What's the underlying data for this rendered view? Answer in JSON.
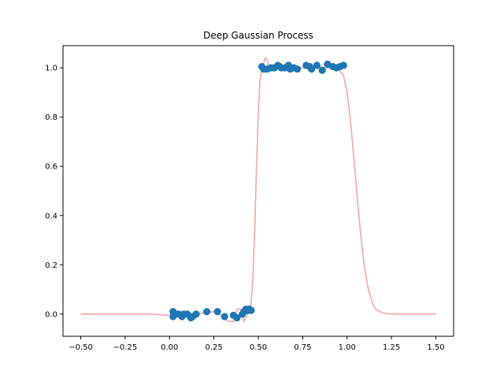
{
  "chart_data": {
    "type": "scatter",
    "title": "Deep Gaussian Process",
    "xlabel": "",
    "ylabel": "",
    "xlim": [
      -0.6,
      1.6
    ],
    "ylim": [
      -0.09,
      1.09
    ],
    "xticks": [
      -0.5,
      -0.25,
      0.0,
      0.25,
      0.5,
      0.75,
      1.0,
      1.25,
      1.5
    ],
    "xtick_labels": [
      "−0.50",
      "−0.25",
      "0.00",
      "0.25",
      "0.50",
      "0.75",
      "1.00",
      "1.25",
      "1.50"
    ],
    "yticks": [
      0.0,
      0.2,
      0.4,
      0.6,
      0.8,
      1.0
    ],
    "ytick_labels": [
      "0.0",
      "0.2",
      "0.4",
      "0.6",
      "0.8",
      "1.0"
    ],
    "grid": false,
    "colors": {
      "points": "#1f77b4",
      "curve": "#f4a6a6"
    },
    "series": [
      {
        "kind": "points",
        "x": [
          0.02,
          0.02,
          0.05,
          0.07,
          0.08,
          0.1,
          0.12,
          0.13,
          0.15,
          0.21,
          0.27,
          0.31,
          0.36,
          0.38,
          0.41,
          0.42,
          0.43,
          0.44,
          0.45,
          0.46,
          0.52,
          0.53,
          0.55,
          0.57,
          0.59,
          0.61,
          0.62,
          0.63,
          0.65,
          0.67,
          0.68,
          0.7,
          0.72,
          0.77,
          0.79,
          0.8,
          0.83,
          0.86,
          0.89,
          0.92,
          0.94,
          0.96,
          0.98
        ],
        "y": [
          0.01,
          -0.01,
          0.0,
          -0.01,
          0.0,
          0.0,
          -0.015,
          -0.01,
          0.0,
          0.01,
          0.01,
          -0.01,
          -0.005,
          -0.015,
          0.0,
          0.01,
          0.02,
          0.015,
          0.02,
          0.015,
          1.005,
          0.995,
          0.995,
          1.0,
          1.0,
          1.01,
          1.005,
          1.0,
          1.0,
          1.01,
          0.995,
          1.0,
          0.995,
          1.01,
          1.005,
          0.995,
          1.01,
          0.99,
          1.015,
          1.005,
          1.0,
          1.005,
          1.01
        ]
      },
      {
        "kind": "line",
        "x": [
          -0.5,
          -0.3,
          -0.1,
          0.0,
          0.05,
          0.1,
          0.15,
          0.2,
          0.25,
          0.3,
          0.33,
          0.36,
          0.38,
          0.4,
          0.42,
          0.44,
          0.45,
          0.46,
          0.47,
          0.48,
          0.49,
          0.5,
          0.51,
          0.52,
          0.53,
          0.54,
          0.55,
          0.56,
          0.58,
          0.6,
          0.7,
          0.8,
          0.9,
          0.95,
          0.98,
          1.0,
          1.02,
          1.04,
          1.06,
          1.08,
          1.1,
          1.12,
          1.14,
          1.16,
          1.2,
          1.25,
          1.3,
          1.4,
          1.5
        ],
        "y": [
          0.0,
          0.0,
          0.0,
          -0.005,
          0.0,
          -0.005,
          0.0,
          0.005,
          0.01,
          -0.01,
          -0.03,
          -0.03,
          0.02,
          0.02,
          -0.03,
          0.0,
          0.01,
          0.05,
          0.15,
          0.35,
          0.6,
          0.82,
          0.95,
          1.0,
          1.02,
          1.04,
          1.03,
          1.0,
          0.99,
          1.0,
          1.0,
          1.0,
          1.0,
          0.995,
          0.97,
          0.9,
          0.78,
          0.62,
          0.45,
          0.3,
          0.18,
          0.1,
          0.05,
          0.02,
          0.005,
          0.0,
          0.0,
          0.0,
          0.0
        ]
      }
    ]
  }
}
